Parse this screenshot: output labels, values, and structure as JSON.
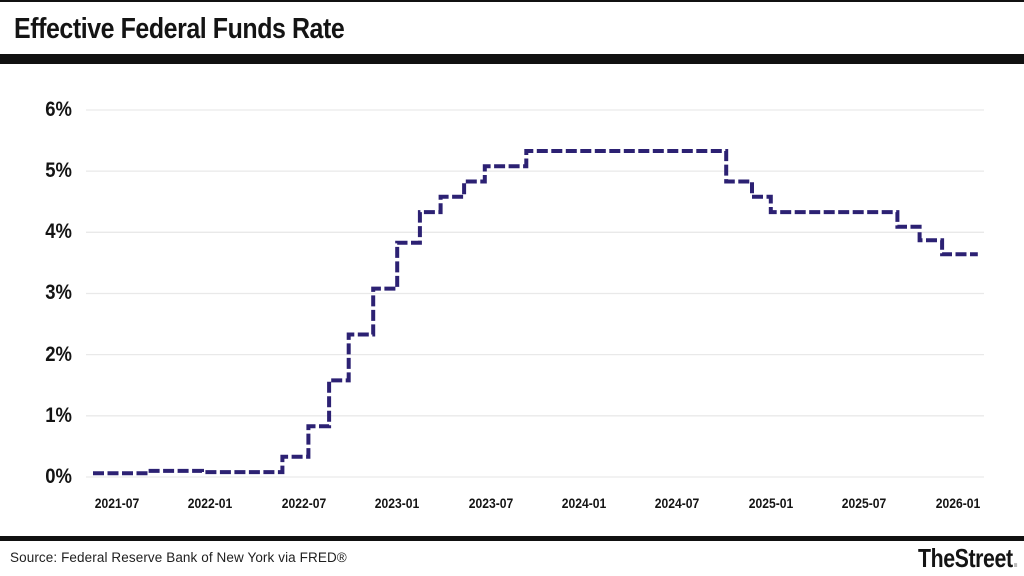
{
  "header": {
    "title": "Effective Federal Funds Rate"
  },
  "footer": {
    "source": "Source: Federal Reserve Bank of New York via FRED®",
    "logo_text": "TheStreet",
    "logo_dot": "."
  },
  "chart_data": {
    "type": "line",
    "step": "after",
    "title": "Effective Federal Funds Rate",
    "xlabel": "",
    "ylabel": "",
    "ylim": [
      0,
      6.55
    ],
    "x_domain": [
      "2021-05-15",
      "2026-02-10"
    ],
    "grid": true,
    "legend": "none",
    "line_color": "#2c2173",
    "grid_color": "#e9e9e9",
    "line_width": 4,
    "dash_pattern": [
      11,
      3.5
    ],
    "y_ticks": [
      {
        "value": 0,
        "label": "0%"
      },
      {
        "value": 1,
        "label": "1%"
      },
      {
        "value": 2,
        "label": "2%"
      },
      {
        "value": 3,
        "label": "3%"
      },
      {
        "value": 4,
        "label": "4%"
      },
      {
        "value": 5,
        "label": "5%"
      },
      {
        "value": 6,
        "label": "6%"
      }
    ],
    "x_ticks": [
      {
        "value": "2021-07",
        "label": "2021-07"
      },
      {
        "value": "2022-01",
        "label": "2022-01"
      },
      {
        "value": "2022-07",
        "label": "2022-07"
      },
      {
        "value": "2023-01",
        "label": "2023-01"
      },
      {
        "value": "2023-07",
        "label": "2023-07"
      },
      {
        "value": "2024-01",
        "label": "2024-01"
      },
      {
        "value": "2024-07",
        "label": "2024-07"
      },
      {
        "value": "2025-01",
        "label": "2025-01"
      },
      {
        "value": "2025-07",
        "label": "2025-07"
      },
      {
        "value": "2026-01",
        "label": "2026-01"
      }
    ],
    "series": [
      {
        "name": "Effective Federal Funds Rate (%)",
        "points": [
          [
            "2021-05-15",
            0.06
          ],
          [
            "2021-09-01",
            0.1
          ],
          [
            "2021-12-15",
            0.08
          ],
          [
            "2022-05-20",
            0.33
          ],
          [
            "2022-07-10",
            0.83
          ],
          [
            "2022-08-20",
            1.58
          ],
          [
            "2022-09-28",
            2.33
          ],
          [
            "2022-11-15",
            3.08
          ],
          [
            "2023-01-01",
            3.83
          ],
          [
            "2023-02-15",
            4.33
          ],
          [
            "2023-03-25",
            4.58
          ],
          [
            "2023-05-10",
            4.83
          ],
          [
            "2023-06-20",
            5.08
          ],
          [
            "2023-09-10",
            5.33
          ],
          [
            "2024-10-05",
            4.83
          ],
          [
            "2024-11-25",
            4.58
          ],
          [
            "2025-01-01",
            4.33
          ],
          [
            "2025-09-05",
            4.09
          ],
          [
            "2025-10-18",
            3.87
          ],
          [
            "2025-12-01",
            3.64
          ],
          [
            "2026-02-10",
            3.64
          ]
        ]
      }
    ]
  }
}
